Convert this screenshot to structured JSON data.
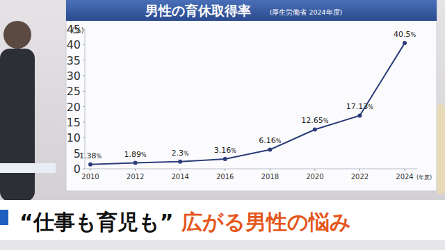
{
  "chart_data": {
    "type": "line",
    "title": "男性の育休取得率",
    "subtitle": "(厚生労働省 2024年度)",
    "y_label": "(%)",
    "x_label": "(年度)",
    "categories": [
      "2010",
      "2012",
      "2014",
      "2016",
      "2018",
      "2020",
      "2022",
      "2024"
    ],
    "values": [
      1.38,
      1.89,
      2.3,
      3.16,
      6.16,
      12.65,
      17.13,
      40.5
    ],
    "value_labels": [
      "1.38%",
      "1.89%",
      "2.3%",
      "3.16%",
      "6.16%",
      "12.65%",
      "17.13%",
      "40.5%"
    ],
    "color": "#2c3d7a",
    "marker": "circle",
    "data_labels": true,
    "grid": false,
    "ylim": [
      0,
      45
    ],
    "yticks": [
      0,
      5,
      10,
      15,
      20,
      25,
      30,
      35,
      40,
      45
    ]
  },
  "caption": {
    "quote": "“仕事も育児も”",
    "highlight": "広がる男性の悩み"
  }
}
